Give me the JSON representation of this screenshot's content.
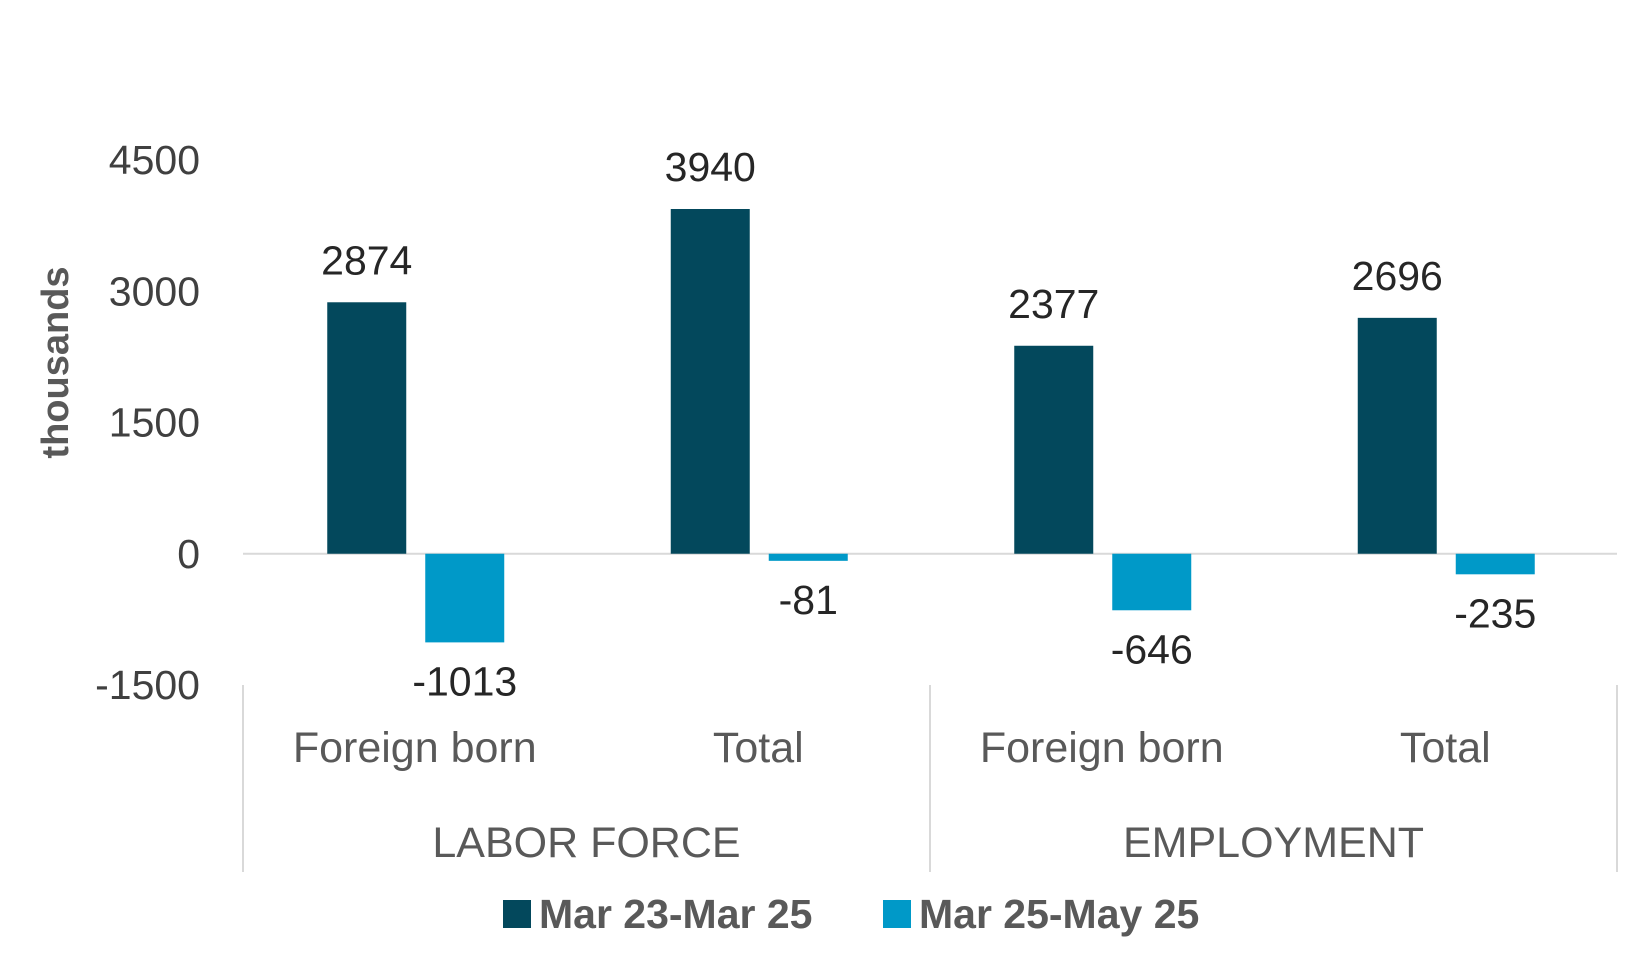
{
  "chart_data": {
    "type": "bar",
    "title": "",
    "xlabel": "",
    "ylabel": "thousands",
    "ylim": [
      -1500,
      4500
    ],
    "yticks": [
      -1500,
      0,
      1500,
      3000,
      4500
    ],
    "grid": false,
    "legend_placement": "bottom",
    "groups": [
      {
        "label": "LABOR FORCE",
        "categories": [
          "Foreign born",
          "Total"
        ]
      },
      {
        "label": "EMPLOYMENT",
        "categories": [
          "Foreign born",
          "Total"
        ]
      }
    ],
    "categories": [
      "Foreign born",
      "Total",
      "Foreign born",
      "Total"
    ],
    "series": [
      {
        "name": "Mar 23-Mar 25",
        "color": "#03485c",
        "values": [
          2874,
          3940,
          2377,
          2696
        ]
      },
      {
        "name": "Mar 25-May 25",
        "color": "#0099c8",
        "values": [
          -1013,
          -81,
          -646,
          -235
        ]
      }
    ]
  }
}
